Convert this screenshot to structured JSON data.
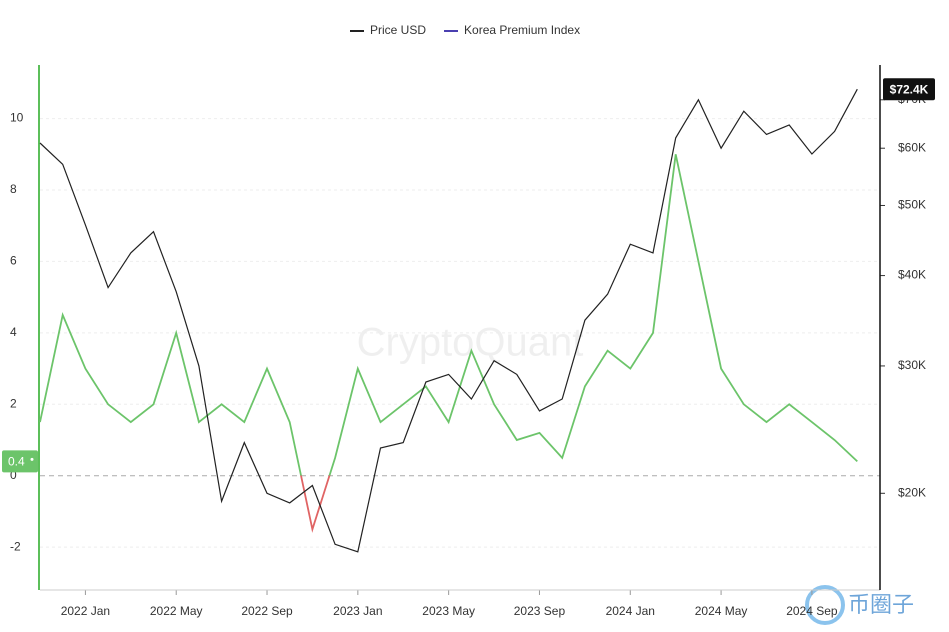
{
  "chart_data": {
    "type": "line",
    "watermark": "CryptoQuant",
    "logo_text": "币圈子",
    "x": [
      "2021-11",
      "2021-12",
      "2022-01",
      "2022-02",
      "2022-03",
      "2022-04",
      "2022-05",
      "2022-06",
      "2022-07",
      "2022-08",
      "2022-09",
      "2022-10",
      "2022-11",
      "2022-12",
      "2023-01",
      "2023-02",
      "2023-03",
      "2023-04",
      "2023-05",
      "2023-06",
      "2023-07",
      "2023-08",
      "2023-09",
      "2023-10",
      "2023-11",
      "2023-12",
      "2024-01",
      "2024-02",
      "2024-03",
      "2024-04",
      "2024-05",
      "2024-06",
      "2024-07",
      "2024-08",
      "2024-09",
      "2024-10",
      "2024-11"
    ],
    "xlim": [
      "2021-11",
      "2024-12"
    ],
    "xticks": [
      {
        "value": "2022-01",
        "label": "2022 Jan"
      },
      {
        "value": "2022-05",
        "label": "2022 May"
      },
      {
        "value": "2022-09",
        "label": "2022 Sep"
      },
      {
        "value": "2023-01",
        "label": "2023 Jan"
      },
      {
        "value": "2023-05",
        "label": "2023 May"
      },
      {
        "value": "2023-09",
        "label": "2023 Sep"
      },
      {
        "value": "2024-01",
        "label": "2024 Jan"
      },
      {
        "value": "2024-05",
        "label": "2024 May"
      },
      {
        "value": "2024-09",
        "label": "2024 Sep"
      }
    ],
    "ylim": [
      -3.2,
      11.5
    ],
    "yticks": [
      -2,
      0,
      2,
      4,
      6,
      8,
      10
    ],
    "y2lim": [
      14700,
      78200
    ],
    "y2log": true,
    "y2ticks": [
      {
        "value": 20000,
        "label": "$20K"
      },
      {
        "value": 30000,
        "label": "$30K"
      },
      {
        "value": 40000,
        "label": "$40K"
      },
      {
        "value": 50000,
        "label": "$50K"
      },
      {
        "value": 60000,
        "label": "$60K"
      },
      {
        "value": 70000,
        "label": "$70K"
      }
    ],
    "grid": true,
    "series": [
      {
        "name": "Price USD",
        "color": "#222222",
        "axis": "y2",
        "values": [
          61000,
          57000,
          47000,
          38500,
          43000,
          46000,
          38000,
          30000,
          19500,
          23500,
          20000,
          19400,
          20500,
          17000,
          16600,
          23100,
          23500,
          28500,
          29200,
          27000,
          30500,
          29200,
          26000,
          27000,
          34700,
          37700,
          44200,
          43000,
          62000,
          70000,
          60000,
          67500,
          62700,
          64600,
          58900,
          63300,
          72400
        ],
        "value_labels": [
          null,
          null,
          null,
          null,
          null,
          null,
          null,
          null,
          null,
          null,
          null,
          null,
          null,
          null,
          null,
          null,
          null,
          null,
          null,
          null,
          null,
          null,
          null,
          null,
          null,
          null,
          null,
          null,
          null,
          null,
          null,
          null,
          null,
          null,
          null,
          null,
          "$72.4K"
        ]
      },
      {
        "name": "Korea Premium Index",
        "color": "#6cc46a",
        "negative_color": "#e06464",
        "legend_color": "#4a3fb0",
        "values": [
          1.5,
          4.5,
          3,
          2,
          1.5,
          2,
          4,
          1.5,
          2,
          1.5,
          3,
          1.5,
          -1.5,
          0.5,
          3,
          1.5,
          2,
          2.5,
          1.5,
          3.5,
          2,
          1,
          1.2,
          0.5,
          2.5,
          3.5,
          3,
          4,
          9,
          6,
          3,
          2,
          1.5,
          2,
          1.5,
          1,
          0.4
        ],
        "value_labels": [
          null,
          null,
          null,
          null,
          null,
          null,
          null,
          null,
          null,
          null,
          null,
          null,
          null,
          null,
          null,
          null,
          null,
          null,
          null,
          null,
          null,
          null,
          null,
          null,
          null,
          null,
          null,
          null,
          null,
          null,
          null,
          null,
          null,
          null,
          null,
          null,
          "0.4"
        ]
      }
    ]
  }
}
